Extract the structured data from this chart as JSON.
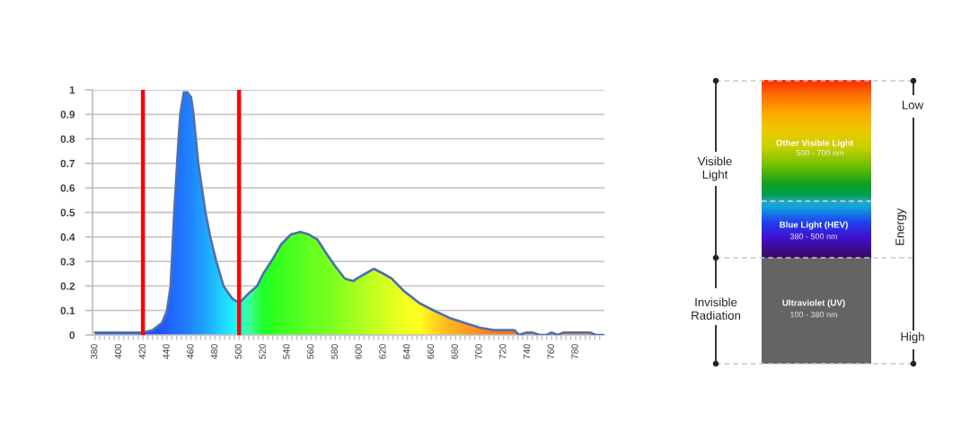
{
  "chart_data": [
    {
      "type": "area",
      "x": [
        380,
        400,
        420,
        428,
        436,
        440,
        443,
        446,
        449,
        451,
        454,
        457,
        460,
        462,
        464,
        466,
        469,
        472,
        476,
        481,
        487,
        494,
        500,
        508,
        515,
        520,
        528,
        535,
        543,
        551,
        558,
        565,
        573,
        580,
        588,
        595,
        598,
        605,
        612,
        620,
        627,
        637,
        650,
        662,
        675,
        687,
        700,
        712,
        729,
        733,
        739,
        744,
        750,
        756,
        760,
        765,
        770,
        792,
        797,
        803
      ],
      "values": [
        0.01,
        0.01,
        0.01,
        0.02,
        0.05,
        0.1,
        0.2,
        0.5,
        0.75,
        0.9,
        0.99,
        0.99,
        0.97,
        0.9,
        0.8,
        0.7,
        0.6,
        0.5,
        0.4,
        0.3,
        0.2,
        0.15,
        0.13,
        0.17,
        0.2,
        0.25,
        0.31,
        0.37,
        0.41,
        0.42,
        0.41,
        0.39,
        0.33,
        0.28,
        0.23,
        0.22,
        0.23,
        0.25,
        0.27,
        0.25,
        0.23,
        0.18,
        0.13,
        0.1,
        0.07,
        0.05,
        0.03,
        0.02,
        0.02,
        0,
        0.01,
        0.01,
        0,
        0,
        0.01,
        0,
        0.01,
        0.01,
        0,
        0
      ],
      "color": "#4e6fae",
      "colors": [
        "#1e3cff",
        "#1e3cff",
        "#0a32ff",
        "#0038ff",
        "#0044ff",
        "#004cff",
        "#0052ff",
        "#0058ff",
        "#005eff",
        "#0062ff",
        "#0068ff",
        "#006eff",
        "#0076ff",
        "#007cff",
        "#0082ff",
        "#0088ff",
        "#0092ff",
        "#009cff",
        "#00aaff",
        "#00bcff",
        "#00d4ff",
        "#00ecff",
        "#00fff0",
        "#20ff90",
        "#10ff40",
        "#00ff10",
        "#10ff00",
        "#20ff00",
        "#30ff00",
        "#40ff00",
        "#4cff00",
        "#58ff00",
        "#64ff00",
        "#72ff00",
        "#84ff00",
        "#94ff00",
        "#9aff00",
        "#aaff00",
        "#bcff00",
        "#ccff00",
        "#dcff00",
        "#f0ff00",
        "#ffff00",
        "#ffd400",
        "#ffac00",
        "#ff9400",
        "#ff7c00",
        "#ff6a00",
        "#ff5a10",
        "#ff5a10",
        "#ff5020",
        "#ff5020",
        "#ff5020",
        "#ff5020",
        "#ff5020",
        "#ff5020",
        "#ff5020",
        "#ff5020",
        "#ff5020",
        "#ff5020"
      ],
      "xlim": [
        378,
        804
      ],
      "xticks": [
        380,
        {
          "value": 384,
          "label": null
        },
        {
          "value": 388,
          "label": null
        },
        {
          "value": 392,
          "label": null
        },
        {
          "value": 396,
          "label": null
        },
        400,
        {
          "value": 404,
          "label": null
        },
        {
          "value": 408,
          "label": null
        },
        {
          "value": 412,
          "label": null
        },
        {
          "value": 416,
          "label": null
        },
        420,
        {
          "value": 424,
          "label": null
        },
        {
          "value": 428,
          "label": null
        },
        {
          "value": 432,
          "label": null
        },
        {
          "value": 436,
          "label": null
        },
        440,
        {
          "value": 444,
          "label": null
        },
        {
          "value": 448,
          "label": null
        },
        {
          "value": 452,
          "label": null
        },
        {
          "value": 456,
          "label": null
        },
        460,
        {
          "value": 464,
          "label": null
        },
        {
          "value": 468,
          "label": null
        },
        {
          "value": 472,
          "label": null
        },
        {
          "value": 476,
          "label": null
        },
        480,
        {
          "value": 484,
          "label": null
        },
        {
          "value": 488,
          "label": null
        },
        {
          "value": 492,
          "label": null
        },
        {
          "value": 496,
          "label": null
        },
        500,
        {
          "value": 504,
          "label": null
        },
        {
          "value": 508,
          "label": null
        },
        {
          "value": 512,
          "label": null
        },
        {
          "value": 516,
          "label": null
        },
        520,
        {
          "value": 524,
          "label": null
        },
        {
          "value": 528,
          "label": null
        },
        {
          "value": 532,
          "label": null
        },
        {
          "value": 536,
          "label": null
        },
        540,
        {
          "value": 544,
          "label": null
        },
        {
          "value": 548,
          "label": null
        },
        {
          "value": 552,
          "label": null
        },
        {
          "value": 556,
          "label": null
        },
        560,
        {
          "value": 564,
          "label": null
        },
        {
          "value": 568,
          "label": null
        },
        {
          "value": 572,
          "label": null
        },
        {
          "value": 576,
          "label": null
        },
        580,
        {
          "value": 584,
          "label": null
        },
        {
          "value": 588,
          "label": null
        },
        {
          "value": 592,
          "label": null
        },
        {
          "value": 596,
          "label": null
        },
        600,
        {
          "value": 604,
          "label": null
        },
        {
          "value": 608,
          "label": null
        },
        {
          "value": 612,
          "label": null
        },
        {
          "value": 616,
          "label": null
        },
        620,
        {
          "value": 624,
          "label": null
        },
        {
          "value": 628,
          "label": null
        },
        {
          "value": 632,
          "label": null
        },
        {
          "value": 636,
          "label": null
        },
        640,
        {
          "value": 644,
          "label": null
        },
        {
          "value": 648,
          "label": null
        },
        {
          "value": 652,
          "label": null
        },
        {
          "value": 656,
          "label": null
        },
        660,
        {
          "value": 664,
          "label": null
        },
        {
          "value": 668,
          "label": null
        },
        {
          "value": 672,
          "label": null
        },
        {
          "value": 676,
          "label": null
        },
        680,
        {
          "value": 684,
          "label": null
        },
        {
          "value": 688,
          "label": null
        },
        {
          "value": 692,
          "label": null
        },
        {
          "value": 696,
          "label": null
        },
        700,
        {
          "value": 704,
          "label": null
        },
        {
          "value": 708,
          "label": null
        },
        {
          "value": 712,
          "label": null
        },
        {
          "value": 716,
          "label": null
        },
        720,
        {
          "value": 724,
          "label": null
        },
        {
          "value": 728,
          "label": null
        },
        {
          "value": 732,
          "label": null
        },
        {
          "value": 736,
          "label": null
        },
        740,
        {
          "value": 744,
          "label": null
        },
        {
          "value": 748,
          "label": null
        },
        {
          "value": 752,
          "label": null
        },
        {
          "value": 756,
          "label": null
        },
        760,
        {
          "value": 764,
          "label": null
        },
        {
          "value": 768,
          "label": null
        },
        {
          "value": 772,
          "label": null
        },
        {
          "value": 776,
          "label": null
        },
        780,
        {
          "value": 784,
          "label": null
        },
        {
          "value": 788,
          "label": null
        },
        {
          "value": 792,
          "label": null
        },
        {
          "value": 796,
          "label": null
        },
        {
          "value": 800,
          "label": null
        }
      ],
      "ylim": [
        0,
        1
      ],
      "yticks": [
        0,
        0.1,
        0.2,
        0.3,
        0.4,
        0.5,
        0.6,
        0.7,
        0.8,
        0.9,
        1
      ],
      "grid": "y",
      "ref_lines": [
        {
          "axis": "x",
          "value": 420,
          "color": "#ff0000"
        },
        {
          "axis": "x",
          "value": 500,
          "color": "#ff0000"
        }
      ]
    },
    {
      "type": "other",
      "annotations": [
        "Other Visible Light",
        "500 - 700 nm",
        "Blue Light (HEV)",
        "380 - 500 nm",
        "Ultraviolet (UV)",
        "100 - 380 nm",
        "Visible\nLight",
        "Invisible\nRadiation",
        "Low",
        "Energy",
        "High"
      ]
    }
  ]
}
